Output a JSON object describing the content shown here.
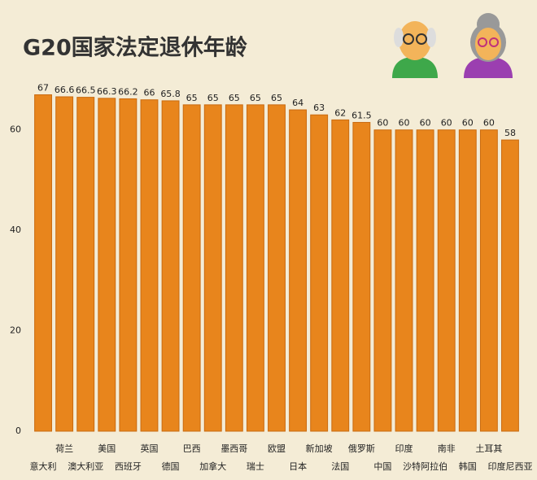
{
  "chart_data": {
    "type": "bar",
    "title": "G20国家法定退休年龄",
    "categories": [
      "意大利",
      "荷兰",
      "澳大利亚",
      "美国",
      "西班牙",
      "英国",
      "德国",
      "巴西",
      "加拿大",
      "墨西哥",
      "瑞士",
      "欧盟",
      "日本",
      "新加坡",
      "法国",
      "俄罗斯",
      "中国",
      "印度",
      "沙特阿拉伯",
      "南非",
      "韩国",
      "土耳其",
      "印度尼西亚"
    ],
    "values": [
      67,
      66.6,
      66.5,
      66.3,
      66.2,
      66,
      65.8,
      65,
      65,
      65,
      65,
      65,
      64,
      63,
      62,
      61.5,
      60,
      60,
      60,
      60,
      60,
      60,
      58
    ],
    "color": "#e8851c",
    "ylim": [
      0,
      70
    ],
    "yticks": [
      0,
      20,
      40,
      60
    ],
    "grid": false
  }
}
